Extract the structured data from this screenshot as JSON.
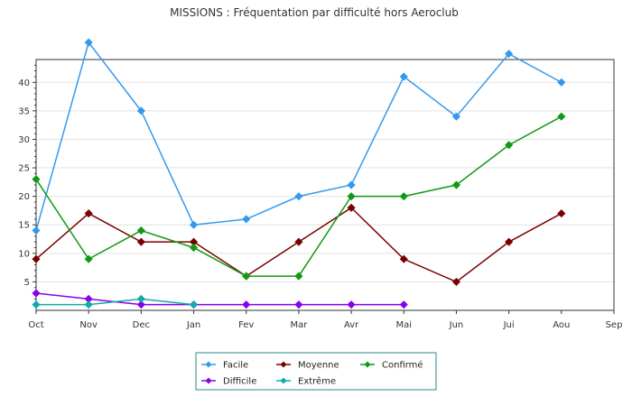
{
  "chart_data": {
    "type": "line",
    "title": "MISSIONS : Fréquentation par difficulté hors Aeroclub",
    "xlabel": "",
    "ylabel": "",
    "categories": [
      "Oct",
      "Nov",
      "Dec",
      "Jan",
      "Fev",
      "Mar",
      "Avr",
      "Mai",
      "Jun",
      "Jui",
      "Aou",
      "Sep"
    ],
    "ylim": [
      0,
      44
    ],
    "yticks": [
      5,
      10,
      15,
      20,
      25,
      30,
      35,
      40
    ],
    "grid": true,
    "legend_position": "bottom-center",
    "series": [
      {
        "name": "Facile",
        "color": "#3399ee",
        "values": [
          14,
          47,
          35,
          15,
          16,
          20,
          22,
          41,
          34,
          45,
          40,
          null
        ]
      },
      {
        "name": "Moyenne",
        "color": "#7a0000",
        "values": [
          9,
          17,
          12,
          12,
          6,
          12,
          18,
          9,
          5,
          12,
          17,
          null
        ]
      },
      {
        "name": "Confirmé",
        "color": "#119911",
        "values": [
          23,
          9,
          14,
          11,
          6,
          6,
          20,
          20,
          22,
          29,
          34,
          null
        ]
      },
      {
        "name": "Difficile",
        "color": "#8800ee",
        "values": [
          3,
          2,
          1,
          1,
          1,
          1,
          1,
          1,
          null,
          null,
          null,
          null
        ]
      },
      {
        "name": "Extrême",
        "color": "#11aaaa",
        "values": [
          1,
          1,
          2,
          1,
          null,
          null,
          null,
          null,
          null,
          null,
          null,
          null
        ]
      }
    ]
  }
}
